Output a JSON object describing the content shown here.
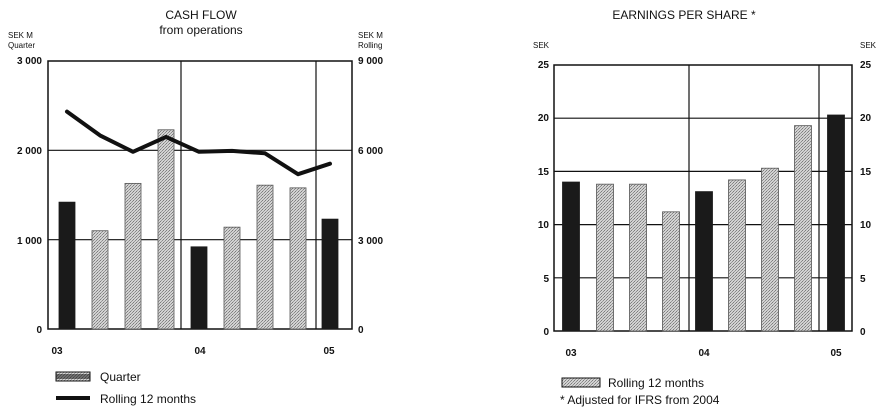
{
  "colors": {
    "dark_bar": "#1a1a1a",
    "light_bar": "#bdbdbd",
    "line": "#111111",
    "frame": "#111111"
  },
  "chart_data": [
    {
      "type": "bar",
      "title": "CASH FLOW",
      "subtitle": "from operations",
      "left_axis_label": [
        "SEK M",
        "Quarter"
      ],
      "right_axis_label": [
        "SEK M",
        "Rolling"
      ],
      "ylim": [
        0,
        3000
      ],
      "y2lim": [
        0,
        9000
      ],
      "yticks": [
        "3 000",
        "2 000",
        "1 000",
        "0"
      ],
      "y2ticks": [
        "9 000",
        "6 000",
        "3 000",
        "0"
      ],
      "x_labels": [
        "03",
        "04",
        "05"
      ],
      "categories": [
        "03 Q1",
        "03 Q2",
        "03 Q3",
        "03 Q4",
        "04 Q1",
        "04 Q2",
        "04 Q3",
        "04 Q4",
        "05 Q1"
      ],
      "series": [
        {
          "name": "Quarter",
          "type": "bar",
          "axis": "left",
          "values": [
            1420,
            1100,
            1630,
            2230,
            920,
            1140,
            1610,
            1580,
            1230
          ],
          "style": [
            "dark",
            "light",
            "light",
            "light",
            "dark",
            "light",
            "light",
            "light",
            "dark"
          ]
        },
        {
          "name": "Rolling 12 months",
          "type": "line",
          "axis": "right",
          "values": [
            7300,
            6500,
            5950,
            6450,
            5950,
            5980,
            5900,
            5200,
            5550
          ]
        }
      ],
      "legend": [
        "Quarter",
        "Rolling 12 months"
      ],
      "grid": true
    },
    {
      "type": "bar",
      "title": "EARNINGS PER SHARE *",
      "left_axis_label": [
        "SEK"
      ],
      "right_axis_label": [
        "SEK"
      ],
      "ylim": [
        0,
        25
      ],
      "yticks": [
        "25",
        "20",
        "15",
        "10",
        "5",
        "0"
      ],
      "x_labels": [
        "03",
        "04",
        "05"
      ],
      "categories": [
        "03 Q1",
        "03 Q2",
        "03 Q3",
        "03 Q4",
        "04 Q1",
        "04 Q2",
        "04 Q3",
        "04 Q4",
        "05 Q1"
      ],
      "series": [
        {
          "name": "Rolling 12 months",
          "type": "bar",
          "values": [
            14.0,
            13.8,
            13.8,
            11.2,
            13.1,
            14.2,
            15.3,
            19.3,
            20.3
          ],
          "style": [
            "dark",
            "light",
            "light",
            "light",
            "dark",
            "light",
            "light",
            "light",
            "dark"
          ]
        }
      ],
      "legend": [
        "Rolling 12 months"
      ],
      "footnote": "* Adjusted for IFRS from 2004",
      "grid": true
    }
  ]
}
